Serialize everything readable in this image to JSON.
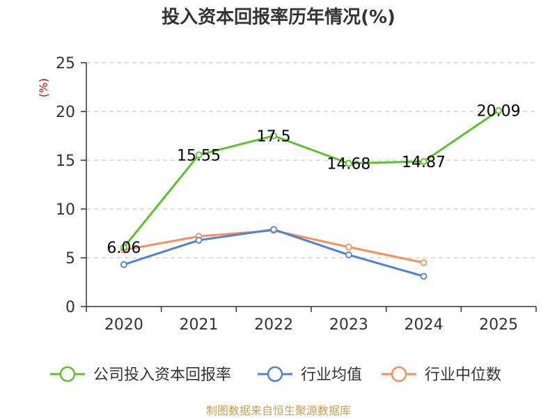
{
  "chart_data": {
    "type": "line",
    "title": "投入资本回报率历年情况(%)",
    "ylabel": "(%)",
    "categories": [
      "2020",
      "2021",
      "2022",
      "2023",
      "2024",
      "2025"
    ],
    "ylim": [
      0,
      25
    ],
    "yticks": [
      0,
      5,
      10,
      15,
      20,
      25
    ],
    "grid": true,
    "legend_position": "bottom",
    "series": [
      {
        "name": "公司投入资本回报率",
        "color": "#5cc22c",
        "values": [
          6.06,
          15.55,
          17.5,
          14.68,
          14.87,
          20.09
        ],
        "labels": [
          "6.06",
          "15.55",
          "17.5",
          "14.68",
          "14.87",
          "20.09"
        ]
      },
      {
        "name": "行业均值",
        "color": "#4f81d9",
        "values": [
          4.3,
          6.8,
          7.9,
          5.3,
          3.1,
          null
        ]
      },
      {
        "name": "行业中位数",
        "color": "#f5905a",
        "values": [
          5.8,
          7.2,
          7.8,
          6.1,
          4.5,
          null
        ]
      }
    ],
    "source": "制图数据来自恒生聚源数据库"
  },
  "colors": {
    "axis": "#333333",
    "grid": "#cccccc",
    "unit": "#e00000",
    "source": "#c8a050"
  }
}
